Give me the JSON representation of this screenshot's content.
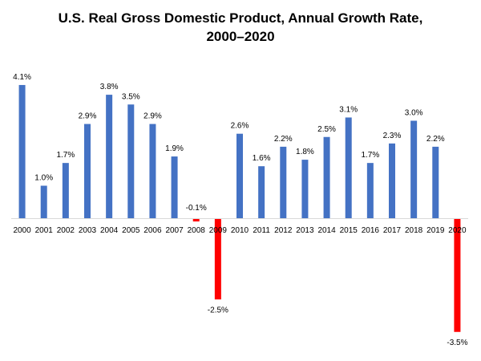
{
  "chart_data": {
    "type": "bar",
    "title": [
      "U.S. Real Gross Domestic Product, Annual Growth Rate,",
      "2000–2020"
    ],
    "xlabel": "",
    "ylabel": "",
    "categories": [
      "2000",
      "2001",
      "2002",
      "2003",
      "2004",
      "2005",
      "2006",
      "2007",
      "2008",
      "2009",
      "2010",
      "2011",
      "2012",
      "2013",
      "2014",
      "2015",
      "2016",
      "2017",
      "2018",
      "2019",
      "2020"
    ],
    "values": [
      4.1,
      1.0,
      1.7,
      2.9,
      3.8,
      3.5,
      2.9,
      1.9,
      -0.1,
      -2.5,
      2.6,
      1.6,
      2.2,
      1.8,
      2.5,
      3.1,
      1.7,
      2.3,
      3.0,
      2.2,
      -3.5
    ],
    "data_labels": [
      "4.1%",
      "1.0%",
      "1.7%",
      "2.9%",
      "3.8%",
      "3.5%",
      "2.9%",
      "1.9%",
      "-0.1%",
      "-2.5%",
      "2.6%",
      "1.6%",
      "2.2%",
      "1.8%",
      "2.5%",
      "3.1%",
      "1.7%",
      "2.3%",
      "3.0%",
      "2.2%",
      "-3.5%"
    ],
    "ylim": [
      -3.5,
      4.1
    ],
    "grid": false,
    "legend": "none",
    "colors": {
      "positive": "#4472C4",
      "negative": "#FF0000",
      "axis": "#D9D9D9",
      "text": "#000000"
    }
  }
}
